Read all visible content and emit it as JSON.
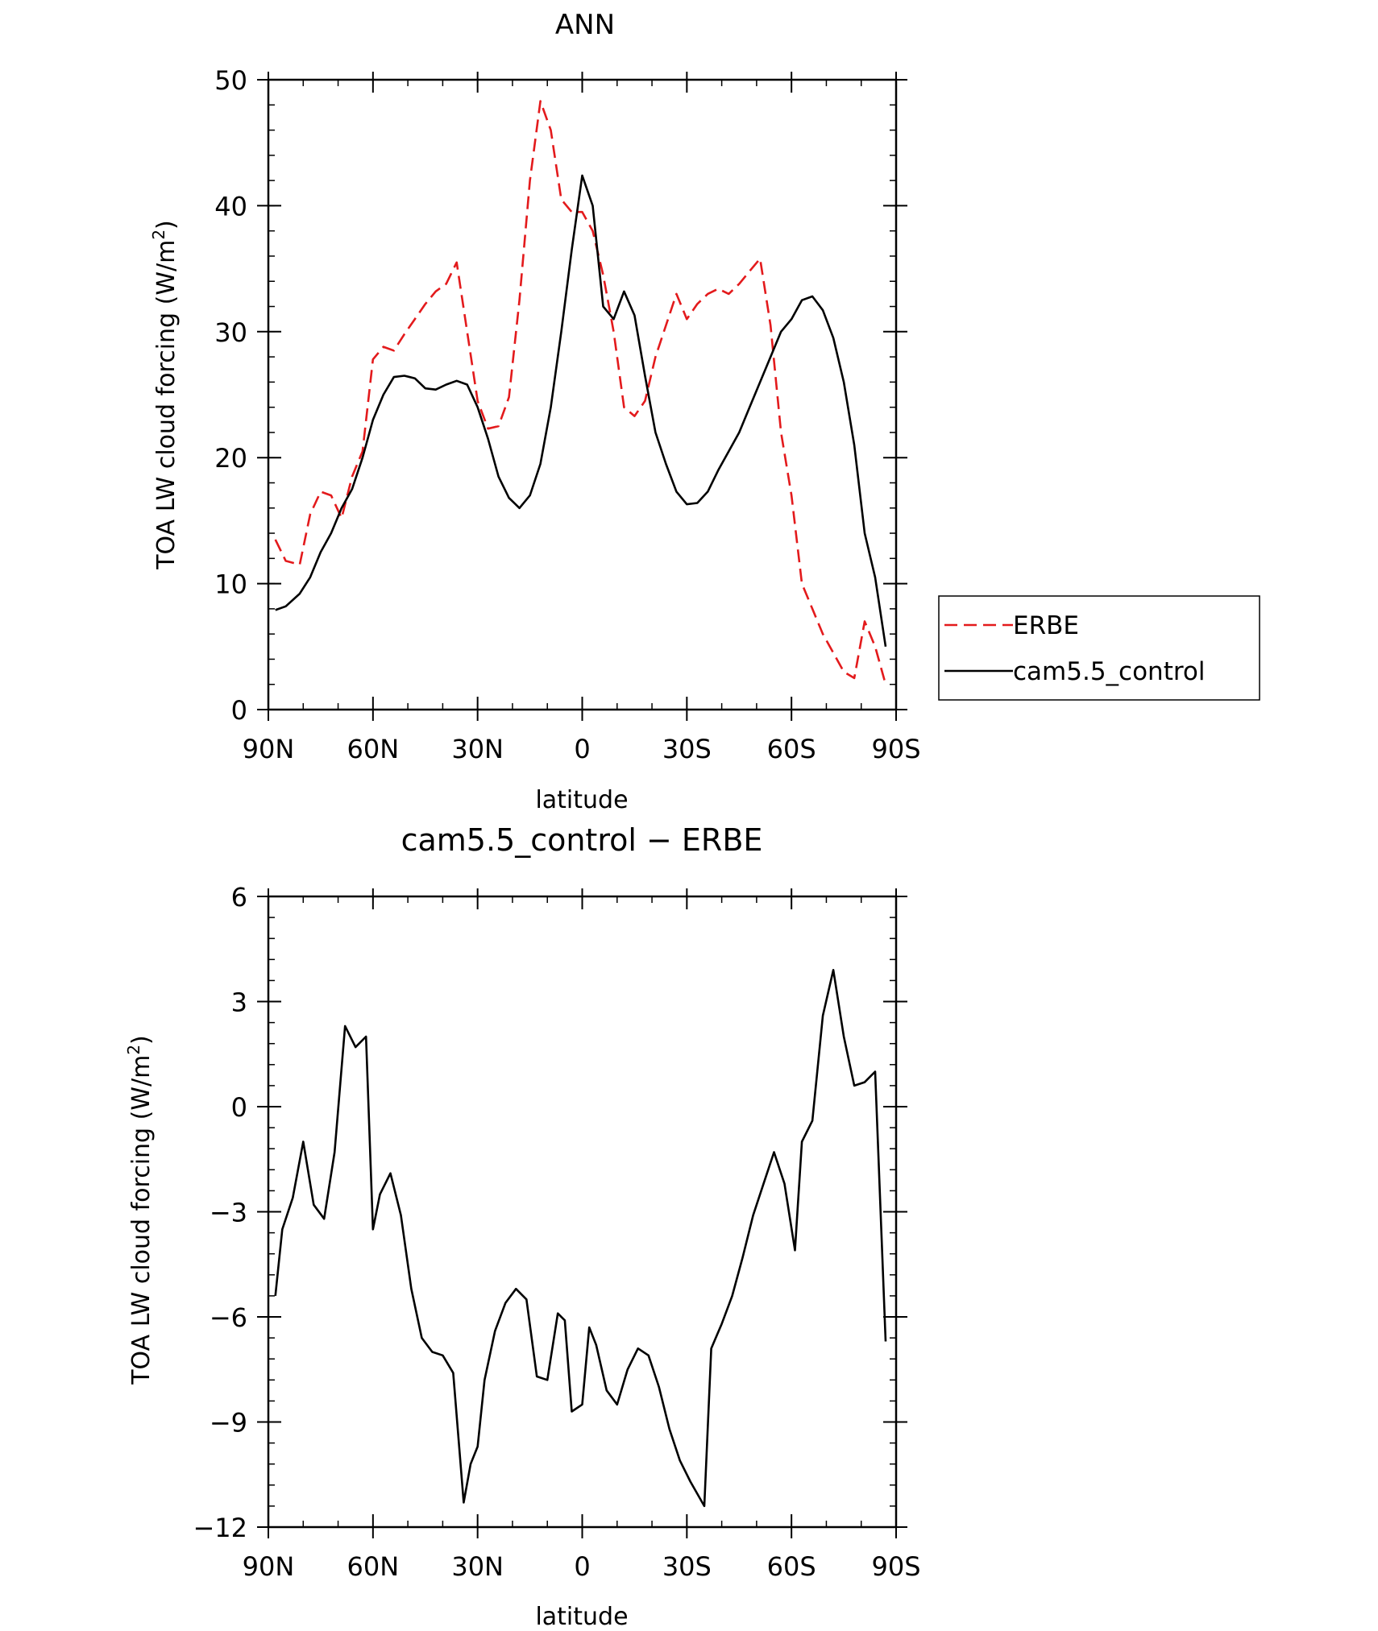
{
  "chart_data": [
    {
      "type": "line",
      "title": "ANN",
      "xlabel": "latitude",
      "ylabel_main": "TOA LW cloud forcing (W/m",
      "ylabel_sup": "2",
      "ylabel_end": ")",
      "xlim": [
        90,
        -90
      ],
      "ylim": [
        0,
        50
      ],
      "xticks": [
        90,
        60,
        30,
        0,
        -30,
        -60,
        -90
      ],
      "xtick_labels": [
        "90N",
        "60N",
        "30N",
        "0",
        "30S",
        "60S",
        "90S"
      ],
      "yticks": [
        0,
        10,
        20,
        30,
        40,
        50
      ],
      "ytick_labels": [
        "0",
        "10",
        "20",
        "30",
        "40",
        "50"
      ],
      "grid": false,
      "legend": "right",
      "x": [
        88,
        85,
        81,
        78,
        75,
        72,
        69,
        66,
        63,
        60,
        57,
        54,
        51,
        48,
        45,
        42,
        39,
        36,
        33,
        30,
        27,
        24,
        21,
        18,
        15,
        12,
        9,
        6,
        3,
        0,
        -3,
        -6,
        -9,
        -12,
        -15,
        -18,
        -21,
        -24,
        -27,
        -30,
        -33,
        -36,
        -39,
        -42,
        -45,
        -48,
        -51,
        -54,
        -57,
        -60,
        -63,
        -66,
        -69,
        -72,
        -75,
        -78,
        -81,
        -84,
        -87
      ],
      "series": [
        {
          "name": "ERBE",
          "color": "#e31a1c",
          "dash": true,
          "values": [
            13.5,
            11.8,
            11.5,
            15.5,
            17.3,
            17.0,
            15.2,
            18.5,
            20.5,
            27.8,
            28.8,
            28.5,
            29.8,
            31.0,
            32.2,
            33.2,
            33.8,
            35.5,
            30.0,
            24.5,
            22.3,
            22.5,
            24.8,
            32.5,
            42.0,
            48.3,
            46.0,
            40.5,
            39.5,
            39.5,
            38.0,
            34.5,
            30.0,
            24.0,
            23.3,
            24.5,
            28.0,
            30.5,
            33.0,
            31.0,
            32.2,
            33.0,
            33.4,
            33.0,
            33.8,
            34.8,
            35.8,
            30.5,
            22.0,
            17.0,
            10.0,
            8.0,
            6.0,
            4.5,
            3.0,
            2.5,
            7.0,
            5.0,
            2.0
          ],
          "values_src": "placeholder"
        },
        {
          "name": "cam5.5_control",
          "color": "#000000",
          "dash": false,
          "values": [
            7.9,
            8.2,
            9.2,
            10.5,
            12.5,
            14.0,
            16.0,
            17.5,
            20.0,
            23.0,
            25.0,
            26.4,
            26.5,
            26.3,
            25.5,
            25.4,
            25.8,
            26.1,
            25.8,
            24.0,
            21.5,
            18.5,
            16.8,
            16.0,
            17.0,
            19.5,
            24.0,
            30.0,
            36.5,
            42.4,
            40.0,
            32.0,
            31.0,
            33.2,
            31.3,
            26.5,
            22.0,
            19.5,
            17.3,
            16.3,
            16.4,
            17.3,
            19.0,
            20.5,
            22.0,
            24.0,
            26.0,
            28.0,
            30.0,
            31.0,
            32.5,
            32.8,
            31.7,
            29.5,
            26.0,
            21.0,
            14.0,
            10.5,
            5.0
          ],
          "values_src": "placeholder"
        }
      ]
    },
    {
      "type": "line",
      "title": "cam5.5_control − ERBE",
      "xlabel": "latitude",
      "ylabel_main": "TOA LW cloud forcing (W/m",
      "ylabel_sup": "2",
      "ylabel_end": ")",
      "xlim": [
        90,
        -90
      ],
      "ylim": [
        -12,
        6
      ],
      "xticks": [
        90,
        60,
        30,
        0,
        -30,
        -60,
        -90
      ],
      "xtick_labels": [
        "90N",
        "60N",
        "30N",
        "0",
        "30S",
        "60S",
        "90S"
      ],
      "yticks": [
        6,
        3,
        0,
        -3,
        -6,
        -9,
        -12
      ],
      "ytick_labels": [
        "6",
        "3",
        "0",
        "−3",
        "−6",
        "−9",
        "−12"
      ],
      "grid": false,
      "x": [
        88,
        86,
        83,
        80,
        77,
        74,
        71,
        68,
        65,
        62,
        60,
        58,
        55,
        52,
        49,
        46,
        43,
        40,
        37,
        34,
        32,
        30,
        28,
        25,
        22,
        19,
        16,
        13,
        10,
        7,
        5,
        3,
        0,
        -2,
        -4,
        -7,
        -10,
        -13,
        -16,
        -19,
        -22,
        -25,
        -28,
        -31,
        -35,
        -37,
        -40,
        -43,
        -46,
        -49,
        -52,
        -55,
        -58,
        -61,
        -63,
        -66,
        -69,
        -72,
        -75,
        -78,
        -81,
        -84,
        -87
      ],
      "values": [
        -5.4,
        -3.5,
        -2.6,
        -1.0,
        -2.8,
        -3.2,
        -1.3,
        2.3,
        1.7,
        2.0,
        -3.5,
        -2.5,
        -1.9,
        -3.1,
        -5.2,
        -6.6,
        -7.0,
        -7.1,
        -7.6,
        -11.3,
        -10.2,
        -9.7,
        -7.8,
        -6.4,
        -5.6,
        -5.2,
        -5.5,
        -7.7,
        -7.8,
        -5.9,
        -6.1,
        -8.7,
        -8.5,
        -6.3,
        -6.8,
        -8.1,
        -8.5,
        -7.5,
        -6.9,
        -7.1,
        -8.0,
        -9.2,
        -10.1,
        -10.7,
        -11.4,
        -6.9,
        -6.2,
        -5.4,
        -4.3,
        -3.1,
        -2.2,
        -1.3,
        -2.2,
        -4.1,
        -1.0,
        -0.4,
        2.6,
        3.9,
        2.0,
        0.6,
        0.7,
        1.0,
        -6.7
      ]
    }
  ]
}
